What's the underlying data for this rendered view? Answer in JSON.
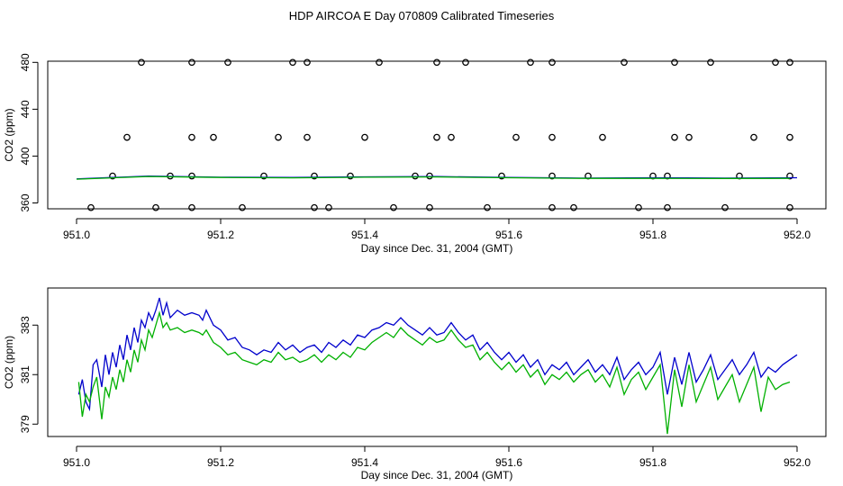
{
  "page_title": "HDP AIRCOA E  Day 070809  Calibrated Timeseries",
  "colors": {
    "raw_points": "#000000",
    "blue_line": "#0000cc",
    "green_line": "#00b000",
    "axes": "#000000"
  },
  "chart_data": [
    {
      "type": "scatter",
      "title": "",
      "xlabel": "Day since Dec. 31, 2004 (GMT)",
      "ylabel": "CO2 (ppm)",
      "xlim": [
        951.0,
        952.0
      ],
      "ylim": [
        355,
        481
      ],
      "xticks": [
        "951.0",
        "951.2",
        "951.4",
        "951.6",
        "951.8",
        "952.0"
      ],
      "yticks": [
        "360",
        "400",
        "440",
        "480"
      ],
      "grid": false,
      "series": [
        {
          "marker": "circle-open",
          "x": [
            951.09,
            951.16,
            951.21,
            951.3,
            951.32,
            951.42,
            951.5,
            951.54,
            951.63,
            951.66,
            951.76,
            951.83,
            951.88,
            951.97,
            951.99,
            951.07,
            951.16,
            951.19,
            951.28,
            951.32,
            951.4,
            951.5,
            951.52,
            951.61,
            951.66,
            951.73,
            951.83,
            951.85,
            951.94,
            951.99,
            951.05,
            951.13,
            951.16,
            951.26,
            951.33,
            951.38,
            951.47,
            951.49,
            951.59,
            951.66,
            951.71,
            951.8,
            951.82,
            951.92,
            951.99,
            951.02,
            951.11,
            951.16,
            951.23,
            951.33,
            951.35,
            951.44,
            951.49,
            951.57,
            951.66,
            951.69,
            951.78,
            951.82,
            951.9,
            951.99
          ],
          "y": [
            480,
            480,
            480,
            480,
            480,
            480,
            480,
            480,
            480,
            480,
            480,
            480,
            480,
            480,
            480,
            416,
            416,
            416,
            416,
            416,
            416,
            416,
            416,
            416,
            416,
            416,
            416,
            416,
            416,
            416,
            383,
            383,
            383,
            383,
            383,
            383,
            383,
            383,
            383,
            383,
            383,
            383,
            383,
            383,
            383,
            356,
            356,
            356,
            356,
            356,
            356,
            356,
            356,
            356,
            356,
            356,
            356,
            356,
            356,
            356
          ]
        },
        {
          "marker": "line-blue",
          "x": [
            951.0,
            951.1,
            951.2,
            951.3,
            951.4,
            951.5,
            951.6,
            951.7,
            951.8,
            951.9,
            952.0
          ],
          "y": [
            380.5,
            383.0,
            382.0,
            381.7,
            382.3,
            382.5,
            381.8,
            381.2,
            381.5,
            381.2,
            381.5
          ]
        },
        {
          "marker": "line-green",
          "x": [
            951.0,
            951.1,
            951.2,
            951.3,
            951.4,
            951.5,
            951.6,
            951.7,
            951.8,
            951.9,
            951.99
          ],
          "y": [
            380.3,
            382.6,
            381.7,
            381.4,
            382.0,
            382.2,
            381.5,
            381.0,
            381.0,
            380.9,
            381.0
          ]
        }
      ]
    },
    {
      "type": "line",
      "title": "",
      "xlabel": "Day since Dec. 31, 2004 (GMT)",
      "ylabel": "CO2 (ppm)",
      "xlim": [
        951.0,
        952.0
      ],
      "ylim": [
        378.5,
        384.5
      ],
      "xticks": [
        "951.0",
        "951.2",
        "951.4",
        "951.6",
        "951.8",
        "952.0"
      ],
      "yticks": [
        "379",
        "381",
        "383"
      ],
      "grid": false,
      "series": [
        {
          "marker": "line-blue",
          "x": [
            951.003,
            951.008,
            951.013,
            951.018,
            951.023,
            951.028,
            951.035,
            951.04,
            951.045,
            951.05,
            951.055,
            951.06,
            951.065,
            951.07,
            951.075,
            951.08,
            951.085,
            951.09,
            951.095,
            951.1,
            951.105,
            951.11,
            951.115,
            951.12,
            951.125,
            951.13,
            951.14,
            951.15,
            951.16,
            951.17,
            951.175,
            951.18,
            951.19,
            951.2,
            951.21,
            951.22,
            951.23,
            951.24,
            951.25,
            951.26,
            951.27,
            951.28,
            951.29,
            951.3,
            951.31,
            951.32,
            951.33,
            951.34,
            951.35,
            951.36,
            951.37,
            951.38,
            951.39,
            951.4,
            951.41,
            951.42,
            951.43,
            951.44,
            951.45,
            951.46,
            951.47,
            951.48,
            951.49,
            951.5,
            951.51,
            951.52,
            951.53,
            951.54,
            951.55,
            951.56,
            951.57,
            951.58,
            951.59,
            951.6,
            951.61,
            951.62,
            951.63,
            951.64,
            951.65,
            951.66,
            951.67,
            951.68,
            951.69,
            951.7,
            951.71,
            951.72,
            951.73,
            951.74,
            951.75,
            951.76,
            951.77,
            951.78,
            951.79,
            951.8,
            951.81,
            951.82,
            951.83,
            951.84,
            951.85,
            951.86,
            951.87,
            951.88,
            951.89,
            951.9,
            951.91,
            951.92,
            951.93,
            951.94,
            951.95,
            951.96,
            951.97,
            951.98,
            951.99,
            952.0
          ],
          "y": [
            380.2,
            380.8,
            379.9,
            379.6,
            381.4,
            381.6,
            380.5,
            381.8,
            381.0,
            381.9,
            381.3,
            382.2,
            381.6,
            382.6,
            382.0,
            382.9,
            382.3,
            383.2,
            382.9,
            383.5,
            383.2,
            383.6,
            384.1,
            383.4,
            383.9,
            383.3,
            383.6,
            383.4,
            383.5,
            383.4,
            383.2,
            383.6,
            383.0,
            382.8,
            382.4,
            382.5,
            382.1,
            382.0,
            381.8,
            382.0,
            381.9,
            382.3,
            382.0,
            382.2,
            381.9,
            382.1,
            382.2,
            381.9,
            382.3,
            382.1,
            382.4,
            382.2,
            382.6,
            382.5,
            382.8,
            382.9,
            383.1,
            383.0,
            383.3,
            383.0,
            382.8,
            382.6,
            382.9,
            382.6,
            382.7,
            383.1,
            382.7,
            382.4,
            382.6,
            382.0,
            382.3,
            381.9,
            381.6,
            381.9,
            381.5,
            381.8,
            381.3,
            381.6,
            381.0,
            381.4,
            381.2,
            381.5,
            381.0,
            381.3,
            381.6,
            381.1,
            381.4,
            381.0,
            381.7,
            380.8,
            381.2,
            381.5,
            381.0,
            381.3,
            381.9,
            380.2,
            381.7,
            380.6,
            381.9,
            380.7,
            381.2,
            381.8,
            380.8,
            381.2,
            381.6,
            381.0,
            381.4,
            381.9,
            380.9,
            381.3,
            381.1,
            381.4,
            381.6,
            381.8
          ],
          "color": "#0000cc"
        },
        {
          "marker": "line-green",
          "x": [
            951.003,
            951.008,
            951.013,
            951.018,
            951.023,
            951.028,
            951.035,
            951.04,
            951.045,
            951.05,
            951.055,
            951.06,
            951.065,
            951.07,
            951.075,
            951.08,
            951.085,
            951.09,
            951.095,
            951.1,
            951.105,
            951.11,
            951.115,
            951.12,
            951.125,
            951.13,
            951.14,
            951.15,
            951.16,
            951.17,
            951.175,
            951.18,
            951.19,
            951.2,
            951.21,
            951.22,
            951.23,
            951.24,
            951.25,
            951.26,
            951.27,
            951.28,
            951.29,
            951.3,
            951.31,
            951.32,
            951.33,
            951.34,
            951.35,
            951.36,
            951.37,
            951.38,
            951.39,
            951.4,
            951.41,
            951.42,
            951.43,
            951.44,
            951.45,
            951.46,
            951.47,
            951.48,
            951.49,
            951.5,
            951.51,
            951.52,
            951.53,
            951.54,
            951.55,
            951.56,
            951.57,
            951.58,
            951.59,
            951.6,
            951.61,
            951.62,
            951.63,
            951.64,
            951.65,
            951.66,
            951.67,
            951.68,
            951.69,
            951.7,
            951.71,
            951.72,
            951.73,
            951.74,
            951.75,
            951.76,
            951.77,
            951.78,
            951.79,
            951.8,
            951.81,
            951.82,
            951.83,
            951.84,
            951.85,
            951.86,
            951.87,
            951.88,
            951.89,
            951.9,
            951.91,
            951.92,
            951.93,
            951.94,
            951.95,
            951.96,
            951.97,
            951.98,
            951.99
          ],
          "y": [
            380.7,
            379.3,
            380.2,
            379.9,
            380.5,
            380.9,
            379.2,
            380.5,
            380.1,
            380.9,
            380.4,
            381.2,
            380.7,
            381.6,
            381.1,
            382.0,
            381.5,
            382.4,
            382.0,
            382.8,
            382.5,
            383.0,
            383.5,
            382.9,
            383.1,
            382.8,
            382.9,
            382.7,
            382.8,
            382.7,
            382.6,
            382.8,
            382.3,
            382.1,
            381.8,
            381.9,
            381.6,
            381.5,
            381.4,
            381.6,
            381.5,
            381.9,
            381.6,
            381.7,
            381.5,
            381.6,
            381.8,
            381.5,
            381.8,
            381.6,
            381.9,
            381.7,
            382.1,
            382.0,
            382.3,
            382.5,
            382.7,
            382.5,
            382.9,
            382.6,
            382.4,
            382.2,
            382.5,
            382.3,
            382.4,
            382.8,
            382.4,
            382.1,
            382.2,
            381.6,
            381.9,
            381.5,
            381.2,
            381.5,
            381.1,
            381.4,
            380.9,
            381.2,
            380.6,
            381.0,
            380.8,
            381.1,
            380.7,
            381.0,
            381.2,
            380.7,
            381.0,
            380.5,
            381.3,
            380.2,
            380.8,
            381.1,
            380.4,
            380.9,
            381.4,
            378.6,
            381.2,
            379.7,
            381.4,
            379.9,
            380.6,
            381.3,
            380.0,
            380.5,
            381.0,
            379.9,
            380.6,
            381.3,
            379.5,
            380.9,
            380.4,
            380.6,
            380.7
          ],
          "color": "#00b000"
        }
      ]
    }
  ]
}
